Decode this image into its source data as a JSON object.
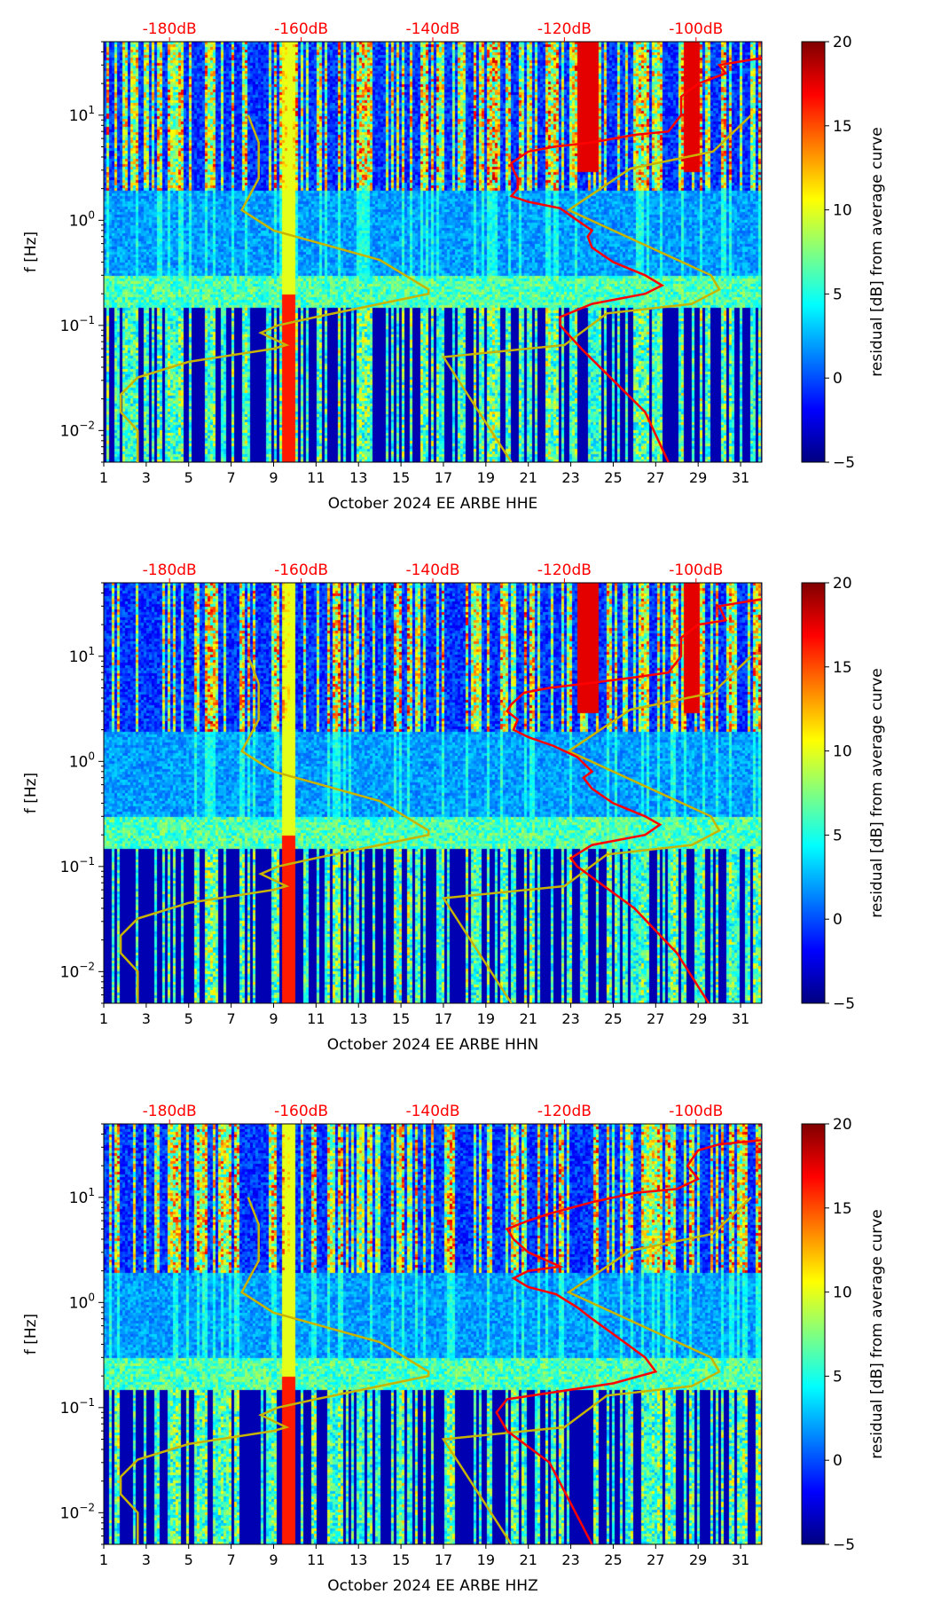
{
  "chart_data": [
    {
      "type": "heatmap",
      "xlabel": "October 2024 EE ARBE  HHE",
      "ylabel": "f [Hz]",
      "colorbar_label": "residual [dB] from average curve",
      "xlim": [
        1,
        32
      ],
      "ylim": [
        0.005,
        50
      ],
      "yscale": "log",
      "clim": [
        -5,
        20
      ],
      "red_curve": [
        [
          32,
          35
        ],
        [
          30,
          30
        ],
        [
          30.3,
          25
        ],
        [
          29,
          20
        ],
        [
          28.2,
          15
        ],
        [
          28.2,
          10
        ],
        [
          27.6,
          7
        ],
        [
          26,
          6.5
        ],
        [
          24,
          5.5
        ],
        [
          22.2,
          5
        ],
        [
          21,
          4.5
        ],
        [
          20.2,
          3.5
        ],
        [
          20.3,
          3
        ],
        [
          20.5,
          2.5
        ],
        [
          20.5,
          2
        ],
        [
          20.2,
          1.7
        ],
        [
          21,
          1.5
        ],
        [
          22.5,
          1.3
        ],
        [
          23.3,
          1.0
        ],
        [
          24,
          0.8
        ],
        [
          23.8,
          0.7
        ],
        [
          24,
          0.55
        ],
        [
          25,
          0.4
        ],
        [
          26.5,
          0.3
        ],
        [
          27.3,
          0.24
        ],
        [
          26.5,
          0.2
        ],
        [
          24,
          0.16
        ],
        [
          22.5,
          0.12
        ],
        [
          22.5,
          0.1
        ],
        [
          23.5,
          0.06
        ],
        [
          25,
          0.03
        ],
        [
          26.5,
          0.015
        ],
        [
          27.6,
          0.005
        ]
      ],
      "yellow_curve_low": [
        [
          7.8,
          10
        ],
        [
          8.3,
          5.5
        ],
        [
          8.3,
          2.5
        ],
        [
          7.5,
          1.25
        ],
        [
          9,
          0.8
        ],
        [
          14,
          0.42
        ],
        [
          16.3,
          0.22
        ],
        [
          16.3,
          0.2
        ],
        [
          11,
          0.12
        ],
        [
          9.2,
          0.1
        ],
        [
          8.4,
          0.085
        ],
        [
          9.6,
          0.065
        ],
        [
          9,
          0.06
        ],
        [
          5,
          0.045
        ],
        [
          2.6,
          0.032
        ],
        [
          1.8,
          0.022
        ],
        [
          1.8,
          0.015
        ],
        [
          2.6,
          0.01
        ],
        [
          2.6,
          0.005
        ]
      ],
      "yellow_curve_high": [
        [
          31.5,
          10
        ],
        [
          29.7,
          4.5
        ],
        [
          25.8,
          3.1
        ],
        [
          22.9,
          1.25
        ],
        [
          29.6,
          0.3
        ],
        [
          30,
          0.22
        ],
        [
          28.7,
          0.16
        ],
        [
          24.7,
          0.13
        ],
        [
          22.7,
          0.065
        ],
        [
          17,
          0.05
        ],
        [
          20.2,
          0.005
        ]
      ]
    },
    {
      "type": "heatmap",
      "xlabel": "October 2024 EE ARBE  HHN",
      "ylabel": "f [Hz]",
      "colorbar_label": "residual [dB] from average curve",
      "xlim": [
        1,
        32
      ],
      "ylim": [
        0.005,
        50
      ],
      "yscale": "log",
      "clim": [
        -5,
        20
      ],
      "red_curve": [
        [
          32,
          35
        ],
        [
          30,
          30
        ],
        [
          30.3,
          22
        ],
        [
          29,
          20
        ],
        [
          28.2,
          15
        ],
        [
          28.2,
          10
        ],
        [
          27.6,
          7
        ],
        [
          26,
          6.3
        ],
        [
          24,
          5.6
        ],
        [
          22,
          5
        ],
        [
          20.8,
          4.5
        ],
        [
          20.2,
          3.5
        ],
        [
          20,
          3
        ],
        [
          20.5,
          2.5
        ],
        [
          20.3,
          2
        ],
        [
          21,
          1.7
        ],
        [
          22.2,
          1.4
        ],
        [
          23.3,
          1.1
        ],
        [
          24,
          0.8
        ],
        [
          23.6,
          0.7
        ],
        [
          24,
          0.55
        ],
        [
          25,
          0.4
        ],
        [
          26.5,
          0.3
        ],
        [
          27.2,
          0.25
        ],
        [
          26.5,
          0.2
        ],
        [
          24,
          0.16
        ],
        [
          23,
          0.12
        ],
        [
          23.3,
          0.1
        ],
        [
          26,
          0.04
        ],
        [
          28,
          0.015
        ],
        [
          29.5,
          0.005
        ]
      ],
      "yellow_curve_low": [
        [
          7.8,
          10
        ],
        [
          8.3,
          5.5
        ],
        [
          8.3,
          2.5
        ],
        [
          7.5,
          1.25
        ],
        [
          9,
          0.8
        ],
        [
          14,
          0.42
        ],
        [
          16.3,
          0.22
        ],
        [
          16.3,
          0.2
        ],
        [
          11,
          0.12
        ],
        [
          9.2,
          0.1
        ],
        [
          8.4,
          0.085
        ],
        [
          9.6,
          0.065
        ],
        [
          9,
          0.06
        ],
        [
          5,
          0.045
        ],
        [
          2.6,
          0.032
        ],
        [
          1.8,
          0.022
        ],
        [
          1.8,
          0.015
        ],
        [
          2.6,
          0.01
        ],
        [
          2.6,
          0.005
        ]
      ],
      "yellow_curve_high": [
        [
          31.5,
          10
        ],
        [
          29.7,
          4.5
        ],
        [
          25.8,
          3.1
        ],
        [
          22.9,
          1.25
        ],
        [
          29.6,
          0.3
        ],
        [
          30,
          0.22
        ],
        [
          28.7,
          0.16
        ],
        [
          24.7,
          0.13
        ],
        [
          22.7,
          0.065
        ],
        [
          17,
          0.05
        ],
        [
          20.2,
          0.005
        ]
      ]
    },
    {
      "type": "heatmap",
      "xlabel": "October 2024 EE ARBE  HHZ",
      "ylabel": "f [Hz]",
      "colorbar_label": "residual [dB] from average curve",
      "xlim": [
        1,
        32
      ],
      "ylim": [
        0.005,
        50
      ],
      "yscale": "log",
      "clim": [
        -5,
        20
      ],
      "red_curve": [
        [
          32,
          35
        ],
        [
          30,
          32
        ],
        [
          29,
          28
        ],
        [
          28.5,
          20
        ],
        [
          29,
          15
        ],
        [
          28,
          12
        ],
        [
          26,
          11
        ],
        [
          24,
          9
        ],
        [
          22,
          7
        ],
        [
          21,
          6
        ],
        [
          20,
          5
        ],
        [
          20.3,
          4
        ],
        [
          21,
          3
        ],
        [
          22.5,
          2.2
        ],
        [
          21,
          2
        ],
        [
          20.3,
          1.7
        ],
        [
          21,
          1.4
        ],
        [
          22.3,
          1.2
        ],
        [
          23.3,
          0.9
        ],
        [
          24,
          0.7
        ],
        [
          25,
          0.5
        ],
        [
          26.5,
          0.3
        ],
        [
          27,
          0.22
        ],
        [
          25,
          0.17
        ],
        [
          20,
          0.12
        ],
        [
          19.5,
          0.09
        ],
        [
          20,
          0.06
        ],
        [
          22,
          0.03
        ],
        [
          24,
          0.005
        ]
      ],
      "yellow_curve_low": [
        [
          7.8,
          10
        ],
        [
          8.3,
          5.5
        ],
        [
          8.3,
          2.5
        ],
        [
          7.5,
          1.25
        ],
        [
          9,
          0.8
        ],
        [
          14,
          0.42
        ],
        [
          16.3,
          0.22
        ],
        [
          16.3,
          0.2
        ],
        [
          11,
          0.12
        ],
        [
          9.2,
          0.1
        ],
        [
          8.4,
          0.085
        ],
        [
          9.6,
          0.065
        ],
        [
          9,
          0.06
        ],
        [
          5,
          0.045
        ],
        [
          2.6,
          0.032
        ],
        [
          1.8,
          0.022
        ],
        [
          1.8,
          0.015
        ],
        [
          2.6,
          0.01
        ],
        [
          2.6,
          0.005
        ]
      ],
      "yellow_curve_high": [
        [
          31.5,
          10
        ],
        [
          29.7,
          4.5
        ],
        [
          25.8,
          3.1
        ],
        [
          22.9,
          1.25
        ],
        [
          29.6,
          0.3
        ],
        [
          30,
          0.22
        ],
        [
          28.7,
          0.16
        ],
        [
          24.7,
          0.13
        ],
        [
          22.7,
          0.065
        ],
        [
          17,
          0.05
        ],
        [
          20.2,
          0.005
        ]
      ]
    }
  ],
  "x_ticks": [
    "1",
    "3",
    "5",
    "7",
    "9",
    "11",
    "13",
    "15",
    "17",
    "19",
    "21",
    "23",
    "25",
    "27",
    "29",
    "31"
  ],
  "y_ticks": [
    {
      "base": "10",
      "exp": "−2",
      "value": 0.01
    },
    {
      "base": "10",
      "exp": "−1",
      "value": 0.1
    },
    {
      "base": "10",
      "exp": "0",
      "value": 1
    },
    {
      "base": "10",
      "exp": "1",
      "value": 10
    }
  ],
  "top_ticks": [
    {
      "label": "-180dB",
      "day": 4.1
    },
    {
      "label": "-160dB",
      "day": 10.3
    },
    {
      "label": "-140dB",
      "day": 16.5
    },
    {
      "label": "-120dB",
      "day": 22.7
    },
    {
      "label": "-100dB",
      "day": 28.9
    }
  ],
  "colorbar_ticks": [
    "−5",
    "0",
    "5",
    "10",
    "15",
    "20"
  ],
  "colors": {
    "red_curve": "#ff0000",
    "yellow_curve": "#c8b400",
    "top_labels": "#ff0000"
  }
}
